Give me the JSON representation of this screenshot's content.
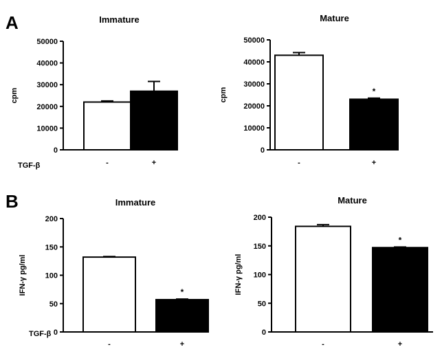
{
  "panels": [
    {
      "letter": "A",
      "row_label": "TGF-β"
    },
    {
      "letter": "B",
      "row_label": "TGF-β"
    }
  ],
  "chart_data": [
    {
      "type": "bar",
      "panel": "A",
      "title": "Immature",
      "ylabel": "cpm",
      "xlabel": "",
      "categories": [
        "-",
        "+"
      ],
      "values": [
        22000,
        27000
      ],
      "errors": [
        500,
        4500
      ],
      "bar_colors": [
        "#ffffff",
        "#000000"
      ],
      "significance": [
        "",
        ""
      ],
      "ylim": [
        0,
        50000
      ],
      "yticks": [
        0,
        10000,
        20000,
        30000,
        40000,
        50000
      ],
      "ytick_labels": [
        "0",
        "10000",
        "20000",
        "30000",
        "40000",
        "50000"
      ],
      "grid": false
    },
    {
      "type": "bar",
      "panel": "A",
      "title": "Mature",
      "ylabel": "cpm",
      "xlabel": "",
      "categories": [
        "-",
        "+"
      ],
      "values": [
        43000,
        23000
      ],
      "errors": [
        1200,
        500
      ],
      "bar_colors": [
        "#ffffff",
        "#000000"
      ],
      "significance": [
        "",
        "*"
      ],
      "ylim": [
        0,
        50000
      ],
      "yticks": [
        0,
        10000,
        20000,
        30000,
        40000,
        50000
      ],
      "ytick_labels": [
        "0",
        "10000",
        "20000",
        "30000",
        "40000",
        "50000"
      ],
      "grid": false
    },
    {
      "type": "bar",
      "panel": "B",
      "title": "Immature",
      "ylabel": "IFN-γ pg/ml",
      "xlabel": "",
      "categories": [
        "-",
        "+"
      ],
      "values": [
        132,
        57
      ],
      "errors": [
        1,
        1
      ],
      "bar_colors": [
        "#ffffff",
        "#000000"
      ],
      "significance": [
        "",
        "*"
      ],
      "ylim": [
        0,
        200
      ],
      "yticks": [
        0,
        50,
        100,
        150,
        200
      ],
      "ytick_labels": [
        "0",
        "50",
        "100",
        "150",
        "200"
      ],
      "grid": false
    },
    {
      "type": "bar",
      "panel": "B",
      "title": "Mature",
      "ylabel": "IFN-γ pg/ml",
      "xlabel": "",
      "categories": [
        "-",
        "+"
      ],
      "values": [
        184,
        147
      ],
      "errors": [
        3,
        1
      ],
      "bar_colors": [
        "#ffffff",
        "#000000"
      ],
      "significance": [
        "",
        "*"
      ],
      "ylim": [
        0,
        200
      ],
      "yticks": [
        0,
        50,
        100,
        150,
        200
      ],
      "ytick_labels": [
        "0",
        "50",
        "100",
        "150",
        "200"
      ],
      "grid": false
    }
  ]
}
